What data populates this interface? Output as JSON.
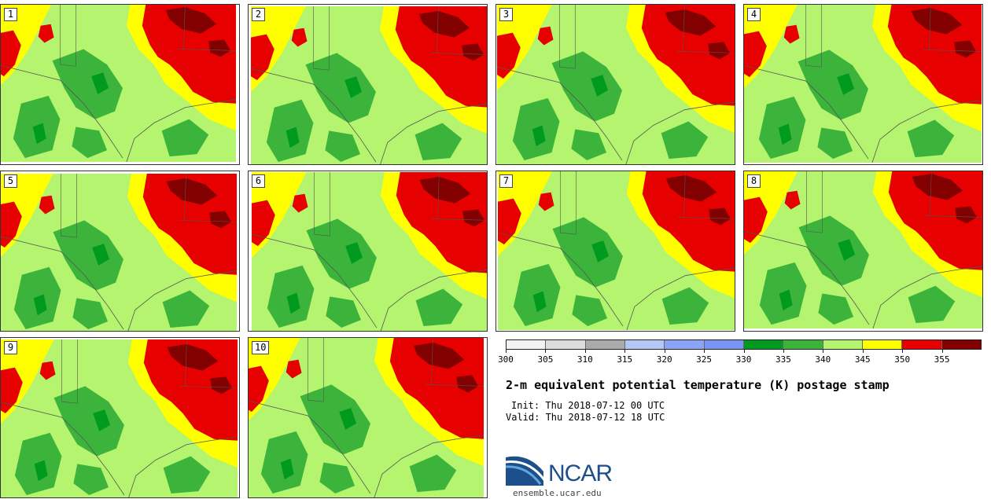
{
  "panels": [
    {
      "label": "1"
    },
    {
      "label": "2"
    },
    {
      "label": "3"
    },
    {
      "label": "4"
    },
    {
      "label": "5"
    },
    {
      "label": "6"
    },
    {
      "label": "7"
    },
    {
      "label": "8"
    },
    {
      "label": "9"
    },
    {
      "label": "10"
    }
  ],
  "legend": {
    "colors": [
      "#f2f2f2",
      "#dcdcdc",
      "#aaaaaa",
      "#b4c8f8",
      "#8ca4f8",
      "#7894f4",
      "#009a1e",
      "#3cb43c",
      "#b4f46e",
      "#ffff00",
      "#e60000",
      "#820000"
    ],
    "labels": [
      "300",
      "305",
      "310",
      "315",
      "320",
      "325",
      "330",
      "335",
      "340",
      "345",
      "350",
      "355"
    ]
  },
  "title": "2-m equivalent potential temperature (K) postage stamp",
  "init": "Init: Thu 2018-07-12 00 UTC",
  "valid": "Valid: Thu 2018-07-12 18 UTC",
  "logo": {
    "text": "NCAR",
    "website": "ensemble.ucar.edu",
    "blue": "#1d4f8a"
  },
  "map_colors": {
    "light_green": "#b4f46e",
    "green": "#3cb43c",
    "dark_green": "#009a1e",
    "yellow": "#ffff00",
    "red": "#e60000",
    "dark_red": "#820000",
    "border": "#555555"
  }
}
